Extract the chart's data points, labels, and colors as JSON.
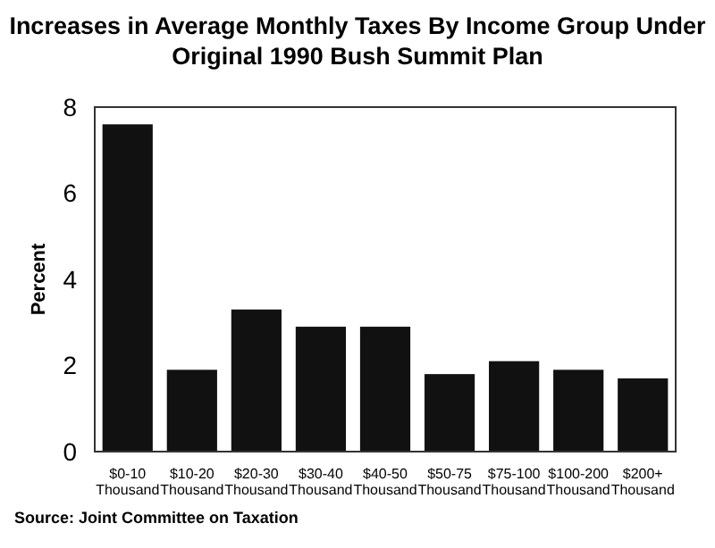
{
  "chart_data": {
    "type": "bar",
    "title": "Increases in Average Monthly Taxes By Income Group Under Original 1990 Bush Summit Plan",
    "ylabel": "Percent",
    "categories": [
      "$0-10 Thousand",
      "$10-20 Thousand",
      "$20-30 Thousand",
      "$30-40 Thousand",
      "$40-50 Thousand",
      "$50-75 Thousand",
      "$75-100 Thousand",
      "$100-200 Thousand",
      "$200+ Thousand"
    ],
    "values": [
      7.6,
      1.9,
      3.3,
      2.9,
      2.9,
      1.8,
      2.1,
      1.9,
      1.7
    ],
    "color": "#111111",
    "ylim": [
      0,
      8
    ],
    "yticks": [
      0,
      2,
      4,
      6,
      8
    ],
    "grid": false,
    "annotations": [
      "Source: Joint Committee on Taxation"
    ]
  }
}
